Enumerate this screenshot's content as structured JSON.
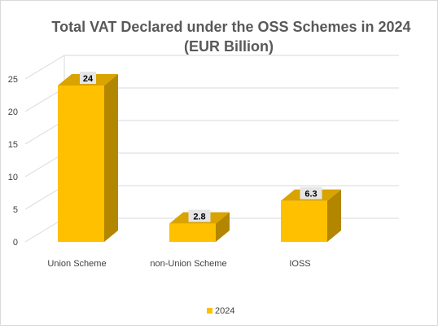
{
  "chart_data": {
    "type": "bar",
    "title": "Total VAT Declared under the OSS Schemes in 2024",
    "subtitle": "(EUR Billion)",
    "categories": [
      "Union Scheme",
      "non-Union Scheme",
      "IOSS"
    ],
    "series": [
      {
        "name": "2024",
        "values": [
          24,
          2.8,
          6.3
        ],
        "data_labels": [
          "24",
          "2.8",
          "6.3"
        ]
      }
    ],
    "xlabel": "",
    "ylabel": "",
    "ylim": [
      0,
      25
    ],
    "yticks": [
      "0",
      "5",
      "10",
      "15",
      "20",
      "25"
    ],
    "grid": true,
    "legend_position": "bottom",
    "style": "3d-bar",
    "colors": {
      "bar_front": "#ffc000",
      "bar_side": "#b38600",
      "bar_top": "#d9a300",
      "grid": "#d9d9d9",
      "label_bg": "#e7e6e6"
    }
  }
}
